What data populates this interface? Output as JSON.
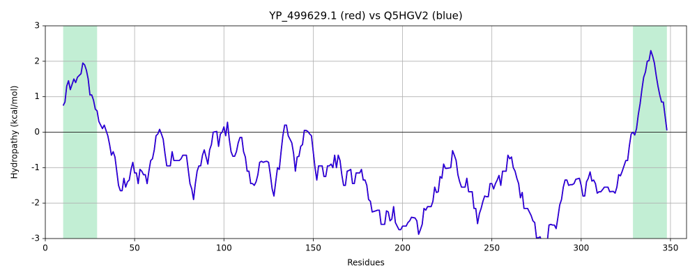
{
  "chart_data": {
    "type": "line",
    "title": "YP_499629.1 (red) vs Q5HGV2 (blue)",
    "xlabel": "Residues",
    "ylabel": "Hydropathy (kcal/mol)",
    "xlim": [
      0,
      359
    ],
    "ylim": [
      -3,
      3
    ],
    "xticks": [
      0,
      50,
      100,
      150,
      200,
      250,
      300,
      350
    ],
    "yticks": [
      -3,
      -2,
      -1,
      0,
      1,
      2,
      3
    ],
    "grid": true,
    "hline": 0,
    "spans": [
      [
        10,
        29
      ],
      [
        329,
        348
      ]
    ],
    "span_color": "#c2eed4",
    "x": [
      10,
      11,
      12,
      13,
      14,
      15,
      16,
      17,
      18,
      20,
      21,
      22,
      23,
      24,
      25,
      26,
      27,
      28,
      29,
      30,
      31,
      32,
      33,
      34,
      35,
      36,
      37,
      38,
      39,
      40,
      41,
      42,
      43,
      44,
      45,
      46,
      47,
      48,
      49,
      50,
      51,
      52,
      53,
      54,
      55,
      56,
      57,
      58,
      59,
      60,
      61,
      62,
      63,
      64,
      65,
      66,
      67,
      68,
      69,
      70,
      71,
      72,
      75,
      76,
      77,
      79,
      80,
      81,
      82,
      83,
      84,
      85,
      86,
      87,
      88,
      89,
      90,
      91,
      92,
      93,
      94,
      96,
      97,
      98,
      99,
      100,
      101,
      102,
      103,
      104,
      105,
      106,
      107,
      108,
      109,
      110,
      111,
      112,
      113,
      114,
      115,
      116,
      117,
      118,
      119,
      120,
      121,
      122,
      123,
      124,
      125,
      126,
      127,
      128,
      129,
      130,
      131,
      132,
      133,
      134,
      135,
      136,
      137,
      138,
      139,
      140,
      141,
      142,
      143,
      144,
      145,
      146,
      147,
      148,
      149,
      150,
      151,
      152,
      153,
      154,
      155,
      156,
      157,
      158,
      159,
      160,
      161,
      162,
      163,
      164,
      165,
      166,
      167,
      168,
      169,
      170,
      171,
      172,
      173,
      174,
      175,
      176,
      177,
      178,
      179,
      180,
      181,
      182,
      183,
      185,
      186,
      187,
      188,
      190,
      191,
      192,
      193,
      194,
      195,
      196,
      197,
      198,
      199,
      200,
      201,
      202,
      203,
      204,
      205,
      207,
      208,
      209,
      210,
      211,
      212,
      213,
      214,
      216,
      217,
      218,
      219,
      220,
      221,
      222,
      223,
      224,
      225,
      227,
      228,
      229,
      230,
      231,
      232,
      233,
      234,
      235,
      236,
      237,
      239,
      240,
      241,
      242,
      243,
      244,
      245,
      246,
      247,
      248,
      249,
      250,
      251,
      252,
      253,
      254,
      255,
      256,
      257,
      258,
      259,
      260,
      261,
      262,
      263,
      264,
      265,
      266,
      267,
      268,
      270,
      271,
      272,
      273,
      274,
      275,
      276,
      277,
      278,
      281,
      282,
      283,
      284,
      285,
      286,
      287,
      288,
      289,
      290,
      291,
      292,
      293,
      294,
      295,
      296,
      297,
      299,
      300,
      301,
      302,
      303,
      304,
      305,
      306,
      307,
      308,
      309,
      310,
      311,
      312,
      313,
      314,
      315,
      316,
      318,
      319,
      320,
      321,
      322,
      323,
      324,
      325,
      326,
      327,
      328,
      329,
      330,
      331,
      332,
      333,
      334,
      335,
      336,
      337,
      338,
      339,
      340,
      341,
      342,
      343,
      344,
      345,
      346,
      347,
      348
    ],
    "series": [
      {
        "name": "YP_499629.1",
        "color": "#ff0000",
        "values": [
          0.75,
          0.85,
          1.3,
          1.45,
          1.2,
          1.35,
          1.5,
          1.4,
          1.55,
          1.65,
          1.95,
          1.9,
          1.75,
          1.5,
          1.05,
          1.05,
          0.9,
          0.65,
          0.6,
          0.3,
          0.2,
          0.1,
          0.2,
          0.05,
          -0.1,
          -0.35,
          -0.65,
          -0.55,
          -0.7,
          -1.1,
          -1.5,
          -1.65,
          -1.65,
          -1.3,
          -1.55,
          -1.4,
          -1.35,
          -1.05,
          -0.85,
          -1.15,
          -1.15,
          -1.45,
          -1.05,
          -1.1,
          -1.2,
          -1.2,
          -1.45,
          -1.1,
          -0.8,
          -0.75,
          -0.5,
          -0.1,
          -0.05,
          0.08,
          -0.05,
          -0.2,
          -0.6,
          -0.95,
          -0.95,
          -0.95,
          -0.55,
          -0.8,
          -0.8,
          -0.75,
          -0.65,
          -0.65,
          -1.05,
          -1.45,
          -1.6,
          -1.9,
          -1.45,
          -1.1,
          -0.95,
          -0.95,
          -0.65,
          -0.5,
          -0.7,
          -0.9,
          -0.5,
          -0.35,
          0.0,
          0.02,
          -0.4,
          -0.05,
          0.0,
          0.15,
          -0.1,
          0.28,
          -0.2,
          -0.55,
          -0.68,
          -0.68,
          -0.55,
          -0.3,
          -0.15,
          -0.15,
          -0.55,
          -0.7,
          -1.1,
          -1.1,
          -1.45,
          -1.45,
          -1.5,
          -1.4,
          -1.2,
          -0.85,
          -0.82,
          -0.85,
          -0.83,
          -0.82,
          -0.85,
          -1.2,
          -1.6,
          -1.8,
          -1.4,
          -1.0,
          -1.05,
          -0.55,
          -0.1,
          0.2,
          0.2,
          -0.1,
          -0.2,
          -0.3,
          -0.6,
          -1.1,
          -0.7,
          -0.68,
          -0.4,
          -0.35,
          0.05,
          0.05,
          0.02,
          -0.05,
          -0.1,
          -0.55,
          -1.0,
          -1.35,
          -0.95,
          -0.95,
          -0.95,
          -1.25,
          -1.25,
          -0.95,
          -0.95,
          -0.9,
          -1.0,
          -0.65,
          -1.0,
          -0.65,
          -0.8,
          -1.2,
          -1.5,
          -1.5,
          -1.1,
          -1.08,
          -1.05,
          -1.45,
          -1.45,
          -1.15,
          -1.15,
          -1.15,
          -1.05,
          -1.35,
          -1.35,
          -1.5,
          -1.9,
          -1.95,
          -2.25,
          -2.22,
          -2.2,
          -2.2,
          -2.6,
          -2.6,
          -2.22,
          -2.25,
          -2.5,
          -2.45,
          -2.1,
          -2.55,
          -2.65,
          -2.75,
          -2.75,
          -2.65,
          -2.65,
          -2.65,
          -2.55,
          -2.5,
          -2.4,
          -2.42,
          -2.5,
          -2.88,
          -2.75,
          -2.6,
          -2.15,
          -2.2,
          -2.1,
          -2.1,
          -1.95,
          -1.55,
          -1.7,
          -1.68,
          -1.25,
          -1.3,
          -0.9,
          -1.02,
          -1.02,
          -1.0,
          -0.52,
          -0.65,
          -0.8,
          -1.2,
          -1.4,
          -1.55,
          -1.55,
          -1.55,
          -1.3,
          -1.68,
          -1.68,
          -2.15,
          -2.15,
          -2.58,
          -2.3,
          -2.15,
          -1.95,
          -1.8,
          -1.82,
          -1.82,
          -1.45,
          -1.45,
          -1.6,
          -1.45,
          -1.35,
          -1.22,
          -1.5,
          -1.1,
          -1.1,
          -1.1,
          -0.65,
          -0.75,
          -0.7,
          -1.0,
          -1.1,
          -1.3,
          -1.45,
          -1.85,
          -1.7,
          -2.15,
          -2.15,
          -2.25,
          -2.35,
          -2.5,
          -2.55,
          -2.98,
          -2.98,
          -2.95,
          -3.1,
          -3.1,
          -2.62,
          -2.6,
          -2.62,
          -2.62,
          -2.72,
          -2.4,
          -2.05,
          -1.9,
          -1.55,
          -1.35,
          -1.35,
          -1.5,
          -1.48,
          -1.48,
          -1.45,
          -1.33,
          -1.3,
          -1.5,
          -1.8,
          -1.8,
          -1.4,
          -1.3,
          -1.12,
          -1.38,
          -1.35,
          -1.45,
          -1.72,
          -1.68,
          -1.68,
          -1.62,
          -1.55,
          -1.55,
          -1.55,
          -1.68,
          -1.67,
          -1.72,
          -1.55,
          -1.2,
          -1.23,
          -1.1,
          -0.95,
          -0.8,
          -0.8,
          -0.38,
          -0.05,
          0.0,
          -0.08,
          0.1,
          0.5,
          0.8,
          1.2,
          1.55,
          1.7,
          2.0,
          2.02,
          2.3,
          2.15,
          1.95,
          1.6,
          1.3,
          1.05,
          0.85,
          0.85,
          0.45,
          0.05
        ]
      },
      {
        "name": "Q5HGV2",
        "color": "#0000ff",
        "values": [
          0.75,
          0.85,
          1.3,
          1.45,
          1.2,
          1.35,
          1.5,
          1.4,
          1.55,
          1.65,
          1.95,
          1.9,
          1.75,
          1.5,
          1.05,
          1.05,
          0.9,
          0.65,
          0.6,
          0.3,
          0.2,
          0.1,
          0.2,
          0.05,
          -0.1,
          -0.35,
          -0.65,
          -0.55,
          -0.7,
          -1.1,
          -1.5,
          -1.65,
          -1.65,
          -1.3,
          -1.55,
          -1.4,
          -1.35,
          -1.05,
          -0.85,
          -1.15,
          -1.15,
          -1.45,
          -1.05,
          -1.1,
          -1.2,
          -1.2,
          -1.45,
          -1.1,
          -0.8,
          -0.75,
          -0.5,
          -0.1,
          -0.05,
          0.08,
          -0.05,
          -0.2,
          -0.6,
          -0.95,
          -0.95,
          -0.95,
          -0.55,
          -0.8,
          -0.8,
          -0.75,
          -0.65,
          -0.65,
          -1.05,
          -1.45,
          -1.6,
          -1.9,
          -1.45,
          -1.1,
          -0.95,
          -0.95,
          -0.65,
          -0.5,
          -0.7,
          -0.9,
          -0.5,
          -0.35,
          0.0,
          0.02,
          -0.4,
          -0.05,
          0.0,
          0.15,
          -0.1,
          0.28,
          -0.2,
          -0.55,
          -0.68,
          -0.68,
          -0.55,
          -0.3,
          -0.15,
          -0.15,
          -0.55,
          -0.7,
          -1.1,
          -1.1,
          -1.45,
          -1.45,
          -1.5,
          -1.4,
          -1.2,
          -0.85,
          -0.82,
          -0.85,
          -0.83,
          -0.82,
          -0.85,
          -1.2,
          -1.6,
          -1.8,
          -1.4,
          -1.0,
          -1.05,
          -0.55,
          -0.1,
          0.2,
          0.2,
          -0.1,
          -0.2,
          -0.3,
          -0.6,
          -1.1,
          -0.7,
          -0.68,
          -0.4,
          -0.35,
          0.05,
          0.05,
          0.02,
          -0.05,
          -0.1,
          -0.55,
          -1.0,
          -1.35,
          -0.95,
          -0.95,
          -0.95,
          -1.25,
          -1.25,
          -0.95,
          -0.95,
          -0.9,
          -1.0,
          -0.65,
          -1.0,
          -0.65,
          -0.8,
          -1.2,
          -1.5,
          -1.5,
          -1.1,
          -1.08,
          -1.05,
          -1.45,
          -1.45,
          -1.15,
          -1.15,
          -1.15,
          -1.05,
          -1.35,
          -1.35,
          -1.5,
          -1.9,
          -1.95,
          -2.25,
          -2.22,
          -2.2,
          -2.2,
          -2.6,
          -2.6,
          -2.22,
          -2.25,
          -2.5,
          -2.45,
          -2.1,
          -2.55,
          -2.65,
          -2.75,
          -2.75,
          -2.65,
          -2.65,
          -2.65,
          -2.55,
          -2.5,
          -2.4,
          -2.42,
          -2.5,
          -2.88,
          -2.75,
          -2.6,
          -2.15,
          -2.2,
          -2.1,
          -2.1,
          -1.95,
          -1.55,
          -1.7,
          -1.68,
          -1.25,
          -1.3,
          -0.9,
          -1.02,
          -1.02,
          -1.0,
          -0.52,
          -0.65,
          -0.8,
          -1.2,
          -1.4,
          -1.55,
          -1.55,
          -1.55,
          -1.3,
          -1.68,
          -1.68,
          -2.15,
          -2.15,
          -2.58,
          -2.3,
          -2.15,
          -1.95,
          -1.8,
          -1.82,
          -1.82,
          -1.45,
          -1.45,
          -1.6,
          -1.45,
          -1.35,
          -1.22,
          -1.5,
          -1.1,
          -1.1,
          -1.1,
          -0.65,
          -0.75,
          -0.7,
          -1.0,
          -1.1,
          -1.3,
          -1.45,
          -1.85,
          -1.7,
          -2.15,
          -2.15,
          -2.25,
          -2.35,
          -2.5,
          -2.55,
          -2.98,
          -2.98,
          -2.95,
          -3.1,
          -3.1,
          -2.62,
          -2.6,
          -2.62,
          -2.62,
          -2.72,
          -2.4,
          -2.05,
          -1.9,
          -1.55,
          -1.35,
          -1.35,
          -1.5,
          -1.48,
          -1.48,
          -1.45,
          -1.33,
          -1.3,
          -1.5,
          -1.8,
          -1.8,
          -1.4,
          -1.3,
          -1.12,
          -1.38,
          -1.35,
          -1.45,
          -1.72,
          -1.68,
          -1.68,
          -1.62,
          -1.55,
          -1.55,
          -1.55,
          -1.68,
          -1.67,
          -1.72,
          -1.55,
          -1.2,
          -1.23,
          -1.1,
          -0.95,
          -0.8,
          -0.8,
          -0.38,
          -0.05,
          0.0,
          -0.08,
          0.1,
          0.5,
          0.8,
          1.2,
          1.55,
          1.7,
          2.0,
          2.02,
          2.3,
          2.15,
          1.95,
          1.6,
          1.3,
          1.05,
          0.85,
          0.85,
          0.45,
          0.05
        ]
      }
    ]
  }
}
